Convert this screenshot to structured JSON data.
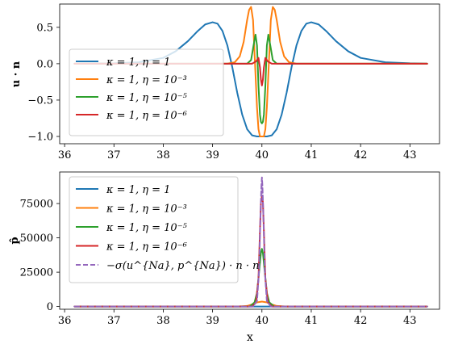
{
  "colors": {
    "blue": "#1f77b4",
    "orange": "#ff7f0e",
    "green": "#2ca02c",
    "red": "#d62728",
    "purple": "#9467bd"
  },
  "chart_data": [
    {
      "type": "line",
      "ylabel": "u · n",
      "xlabel": "",
      "xlim": [
        35.9,
        43.6
      ],
      "ylim": [
        -1.1,
        0.82
      ],
      "xticks": [
        36,
        37,
        38,
        39,
        40,
        41,
        42,
        43
      ],
      "yticks": [
        -1.0,
        -0.5,
        0.0,
        0.5
      ],
      "ytick_labels": [
        "−1.0",
        "−0.5",
        "0.0",
        "0.5"
      ],
      "legend_position": "center-left",
      "series": [
        {
          "name": "κ = 1, η = 1",
          "color": "#1f77b4",
          "x": [
            36.2,
            37.0,
            37.5,
            38.0,
            38.25,
            38.5,
            38.7,
            38.85,
            39.0,
            39.1,
            39.2,
            39.3,
            39.4,
            39.5,
            39.6,
            39.7,
            39.8,
            39.9,
            40.0,
            40.1,
            40.2,
            40.3,
            40.4,
            40.5,
            40.6,
            40.7,
            40.8,
            40.9,
            41.0,
            41.15,
            41.3,
            41.5,
            41.75,
            42.0,
            42.5,
            43.0,
            43.35
          ],
          "y": [
            0.0,
            0.005,
            0.02,
            0.08,
            0.17,
            0.31,
            0.45,
            0.54,
            0.57,
            0.55,
            0.45,
            0.25,
            -0.05,
            -0.4,
            -0.7,
            -0.9,
            -0.985,
            -1.0,
            -1.0,
            -1.0,
            -0.985,
            -0.9,
            -0.7,
            -0.4,
            -0.05,
            0.25,
            0.45,
            0.55,
            0.57,
            0.54,
            0.45,
            0.31,
            0.17,
            0.08,
            0.02,
            0.005,
            0.0
          ]
        },
        {
          "name": "κ = 1, η = 10⁻³",
          "color": "#ff7f0e",
          "x": [
            36.2,
            39.3,
            39.45,
            39.55,
            39.63,
            39.7,
            39.74,
            39.78,
            39.82,
            39.86,
            39.9,
            39.93,
            39.96,
            40.0,
            40.04,
            40.07,
            40.1,
            40.14,
            40.18,
            40.22,
            40.26,
            40.3,
            40.37,
            40.45,
            40.55,
            40.7,
            43.35
          ],
          "y": [
            0.0,
            0.0,
            0.02,
            0.1,
            0.3,
            0.6,
            0.74,
            0.78,
            0.6,
            0.0,
            -0.6,
            -0.9,
            -1.0,
            -1.0,
            -1.0,
            -0.9,
            -0.6,
            0.0,
            0.6,
            0.78,
            0.74,
            0.6,
            0.3,
            0.1,
            0.02,
            0.0,
            0.0
          ]
        },
        {
          "name": "κ = 1, η = 10⁻⁵",
          "color": "#2ca02c",
          "x": [
            36.2,
            39.7,
            39.78,
            39.83,
            39.87,
            39.9,
            39.93,
            39.96,
            39.98,
            40.0,
            40.02,
            40.04,
            40.07,
            40.1,
            40.13,
            40.17,
            40.22,
            40.3,
            43.35
          ],
          "y": [
            0.0,
            0.0,
            0.05,
            0.25,
            0.4,
            0.25,
            -0.3,
            -0.7,
            -0.8,
            -0.82,
            -0.8,
            -0.7,
            -0.3,
            0.25,
            0.4,
            0.25,
            0.05,
            0.0,
            0.0
          ]
        },
        {
          "name": "κ = 1, η = 10⁻⁶",
          "color": "#d62728",
          "x": [
            36.2,
            39.8,
            39.88,
            39.93,
            39.96,
            39.98,
            40.0,
            40.02,
            40.04,
            40.07,
            40.12,
            40.2,
            43.35
          ],
          "y": [
            0.0,
            0.0,
            0.03,
            0.08,
            -0.05,
            -0.22,
            -0.3,
            -0.22,
            -0.05,
            0.08,
            0.03,
            0.0,
            0.0
          ]
        }
      ]
    },
    {
      "type": "line",
      "ylabel": "p̂",
      "xlabel": "x",
      "xlim": [
        35.9,
        43.6
      ],
      "ylim": [
        -2000,
        98000
      ],
      "xticks": [
        36,
        37,
        38,
        39,
        40,
        41,
        42,
        43
      ],
      "yticks": [
        0,
        25000,
        50000,
        75000
      ],
      "ytick_labels": [
        "0",
        "25000",
        "50000",
        "75000"
      ],
      "legend_position": "upper-left",
      "series": [
        {
          "name": "κ = 1, η = 1",
          "color": "#1f77b4",
          "dashed": false,
          "x": [
            36.2,
            43.35
          ],
          "y": [
            0,
            0
          ]
        },
        {
          "name": "κ = 1, η = 10⁻³",
          "color": "#ff7f0e",
          "dashed": false,
          "x": [
            36.2,
            39.5,
            39.7,
            39.8,
            39.9,
            40.0,
            40.1,
            40.2,
            40.3,
            40.5,
            43.35
          ],
          "y": [
            0,
            0,
            400,
            1500,
            3000,
            3600,
            3000,
            1500,
            400,
            0,
            0
          ]
        },
        {
          "name": "κ = 1, η = 10⁻⁵",
          "color": "#2ca02c",
          "dashed": false,
          "x": [
            36.2,
            39.75,
            39.85,
            39.9,
            39.95,
            39.98,
            40.0,
            40.02,
            40.05,
            40.1,
            40.15,
            40.25,
            43.35
          ],
          "y": [
            0,
            0,
            3000,
            10000,
            28000,
            39000,
            42000,
            39000,
            28000,
            10000,
            3000,
            0,
            0
          ]
        },
        {
          "name": "κ = 1, η = 10⁻⁶",
          "color": "#d62728",
          "dashed": false,
          "x": [
            36.2,
            39.8,
            39.88,
            39.93,
            39.96,
            39.98,
            40.0,
            40.02,
            40.04,
            40.07,
            40.12,
            40.2,
            43.35
          ],
          "y": [
            0,
            0,
            3000,
            20000,
            55000,
            76000,
            80000,
            76000,
            55000,
            20000,
            3000,
            0,
            0
          ]
        },
        {
          "name": "−σ(u^{Na}, p^{Na}) · n · n",
          "color": "#9467bd",
          "dashed": true,
          "x": [
            36.2,
            39.82,
            39.9,
            39.94,
            39.97,
            39.99,
            40.0,
            40.01,
            40.03,
            40.06,
            40.1,
            40.18,
            43.35
          ],
          "y": [
            0,
            0,
            4000,
            25000,
            65000,
            88000,
            94000,
            88000,
            65000,
            25000,
            4000,
            0,
            0
          ]
        }
      ]
    }
  ]
}
